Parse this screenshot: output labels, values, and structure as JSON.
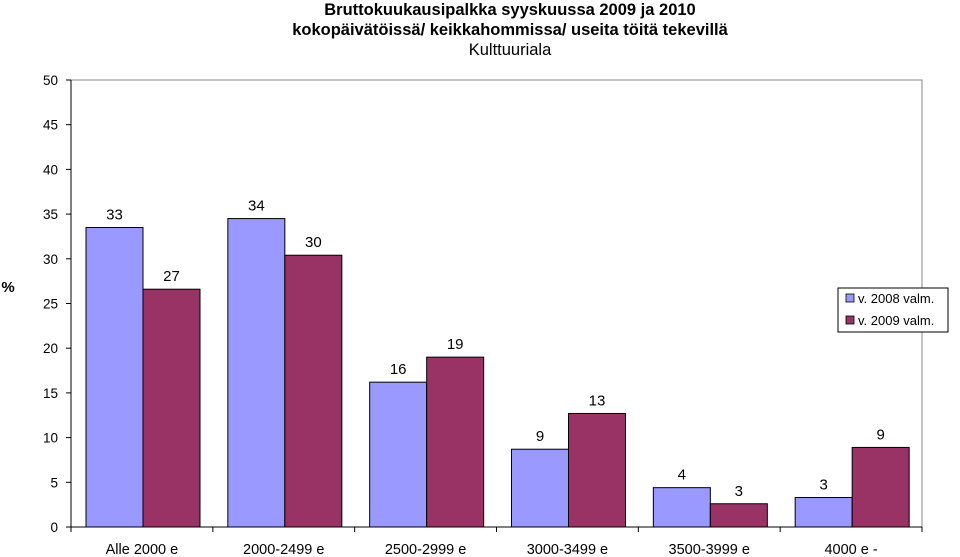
{
  "chart_data": {
    "type": "bar",
    "title": "Bruttokuukausipalkka syyskuussa 2009 ja 2010",
    "subtitle": "kokopäivätöissä/ keikkahommissa/ useita töitä tekevillä",
    "subtitle2": "Kulttuuriala",
    "ylabel": "%",
    "xlabel": "",
    "ylim": [
      0,
      50
    ],
    "yticks": [
      "0",
      "5",
      "10",
      "15",
      "20",
      "25",
      "30",
      "35",
      "40",
      "45",
      "50"
    ],
    "categories": [
      "Alle 2000 e",
      "2000-2499 e",
      "2500-2999 e",
      "3000-3499 e",
      "3500-3999 e",
      "4000 e -"
    ],
    "series": [
      {
        "name": "v. 2008 valm.",
        "color": "#9999ff",
        "values": [
          33.5,
          34.5,
          16.2,
          8.7,
          4.4,
          3.3
        ],
        "labels": [
          "33",
          "34",
          "16",
          "9",
          "4",
          "3"
        ]
      },
      {
        "name": "v. 2009 valm.",
        "color": "#993366",
        "values": [
          26.6,
          30.4,
          19.0,
          12.7,
          2.6,
          8.9
        ],
        "labels": [
          "27",
          "30",
          "19",
          "13",
          "3",
          "9"
        ]
      }
    ],
    "legend_position": "right",
    "grid": false
  }
}
